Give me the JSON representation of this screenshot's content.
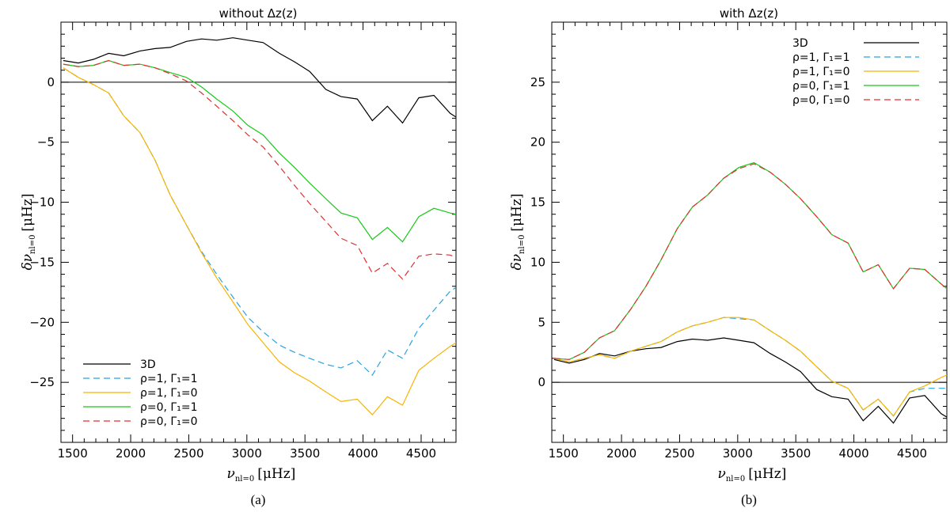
{
  "figure_captions": [
    "(a)",
    "(b)"
  ],
  "chart_data": [
    {
      "type": "line",
      "title": "without Δz(z)",
      "xlabel": "ν",
      "xlabel_sub": "nl=0",
      "xlabel_unit": "[μHz]",
      "ylabel": "δν",
      "ylabel_sub": "nl=0",
      "ylabel_unit": "[μHz]",
      "xlim": [
        1400,
        4800
      ],
      "ylim": [
        -30,
        5
      ],
      "xticks": [
        1500,
        2000,
        2500,
        3000,
        3500,
        4000,
        4500
      ],
      "yticks": [
        -25,
        -20,
        -15,
        -10,
        -5,
        0
      ],
      "xtick_labels": [
        "1500",
        "2000",
        "2500",
        "3000",
        "3500",
        "4000",
        "4500"
      ],
      "ytick_labels": [
        "−25",
        "−20",
        "−15",
        "−10",
        "−5",
        "0"
      ],
      "hline": 0,
      "legend_position": "bottom-left",
      "x": [
        1420,
        1550,
        1680,
        1810,
        1940,
        2080,
        2210,
        2340,
        2480,
        2610,
        2740,
        2880,
        3010,
        3140,
        3280,
        3410,
        3540,
        3680,
        3810,
        3950,
        4080,
        4210,
        4340,
        4480,
        4610,
        4750,
        4800
      ],
      "series": [
        {
          "name": "3D",
          "color": "#000000",
          "dash": "solid",
          "values": [
            1.8,
            1.6,
            1.9,
            2.4,
            2.2,
            2.6,
            2.8,
            2.9,
            3.4,
            3.6,
            3.5,
            3.7,
            3.5,
            3.3,
            2.4,
            1.7,
            0.9,
            -0.6,
            -1.2,
            -1.4,
            -3.2,
            -2.0,
            -3.4,
            -1.3,
            -1.1,
            -2.6,
            -2.9
          ]
        },
        {
          "name": "ρ=1, Γ₁=1",
          "color": "#2aa2e2",
          "dash": "dashed",
          "values": [
            1.2,
            0.4,
            -0.2,
            -0.9,
            -2.8,
            -4.2,
            -6.5,
            -9.4,
            -11.9,
            -14.1,
            -16.0,
            -17.9,
            -19.6,
            -20.8,
            -21.9,
            -22.5,
            -23.0,
            -23.5,
            -23.8,
            -23.2,
            -24.4,
            -22.3,
            -23.0,
            -20.5,
            -19.0,
            -17.4,
            -17.1
          ]
        },
        {
          "name": "ρ=1, Γ₁=0",
          "color": "#f7b500",
          "dash": "solid",
          "values": [
            1.2,
            0.4,
            -0.2,
            -0.9,
            -2.8,
            -4.2,
            -6.5,
            -9.4,
            -11.9,
            -14.2,
            -16.3,
            -18.3,
            -20.2,
            -21.7,
            -23.3,
            -24.2,
            -24.9,
            -25.8,
            -26.6,
            -26.4,
            -27.7,
            -26.2,
            -26.9,
            -24.0,
            -23.0,
            -22.0,
            -21.7
          ]
        },
        {
          "name": "ρ=0, Γ₁=1",
          "color": "#18c818",
          "dash": "solid",
          "values": [
            1.5,
            1.3,
            1.4,
            1.8,
            1.4,
            1.5,
            1.2,
            0.8,
            0.4,
            -0.4,
            -1.4,
            -2.4,
            -3.6,
            -4.4,
            -5.9,
            -7.1,
            -8.4,
            -9.7,
            -10.9,
            -11.3,
            -13.1,
            -12.1,
            -13.3,
            -11.2,
            -10.5,
            -10.9,
            -11.0
          ]
        },
        {
          "name": "ρ=0, Γ₁=0",
          "color": "#e03030",
          "dash": "dashed",
          "values": [
            1.5,
            1.3,
            1.4,
            1.8,
            1.4,
            1.5,
            1.2,
            0.7,
            0.1,
            -0.9,
            -2.0,
            -3.2,
            -4.4,
            -5.4,
            -7.0,
            -8.6,
            -10.1,
            -11.6,
            -13.0,
            -13.6,
            -15.9,
            -15.1,
            -16.4,
            -14.5,
            -14.3,
            -14.4,
            -14.6
          ]
        }
      ]
    },
    {
      "type": "line",
      "title": "with Δz(z)",
      "xlabel": "ν",
      "xlabel_sub": "nl=0",
      "xlabel_unit": "[μHz]",
      "ylabel": "δν",
      "ylabel_sub": "nl=0",
      "ylabel_unit": "[μHz]",
      "xlim": [
        1400,
        4800
      ],
      "ylim": [
        -5,
        30
      ],
      "xticks": [
        1500,
        2000,
        2500,
        3000,
        3500,
        4000,
        4500
      ],
      "yticks": [
        0,
        5,
        10,
        15,
        20,
        25
      ],
      "xtick_labels": [
        "1500",
        "2000",
        "2500",
        "3000",
        "3500",
        "4000",
        "4500"
      ],
      "ytick_labels": [
        "0",
        "5",
        "10",
        "15",
        "20",
        "25"
      ],
      "hline": 0,
      "legend_position": "top-right",
      "x": [
        1420,
        1550,
        1680,
        1810,
        1940,
        2080,
        2210,
        2340,
        2480,
        2610,
        2740,
        2880,
        3010,
        3140,
        3280,
        3410,
        3540,
        3680,
        3810,
        3950,
        4080,
        4210,
        4340,
        4480,
        4610,
        4750,
        4800
      ],
      "series": [
        {
          "name": "3D",
          "color": "#000000",
          "dash": "solid",
          "values": [
            1.9,
            1.6,
            1.9,
            2.4,
            2.2,
            2.6,
            2.8,
            2.9,
            3.4,
            3.6,
            3.5,
            3.7,
            3.5,
            3.3,
            2.4,
            1.7,
            0.9,
            -0.6,
            -1.2,
            -1.4,
            -3.2,
            -2.0,
            -3.4,
            -1.3,
            -1.1,
            -2.6,
            -2.9
          ]
        },
        {
          "name": "ρ=1, Γ₁=1",
          "color": "#2aa2e2",
          "dash": "dashed",
          "values": [
            2.0,
            1.7,
            2.0,
            2.3,
            2.0,
            2.6,
            3.0,
            3.4,
            4.2,
            4.7,
            5.0,
            5.4,
            5.3,
            5.2,
            4.3,
            3.5,
            2.6,
            1.3,
            0.1,
            -0.5,
            -2.3,
            -1.4,
            -2.8,
            -0.8,
            -0.5,
            -0.5,
            -0.5
          ]
        },
        {
          "name": "ρ=1, Γ₁=0",
          "color": "#f7b500",
          "dash": "solid",
          "values": [
            2.0,
            1.7,
            2.0,
            2.3,
            2.0,
            2.6,
            3.0,
            3.4,
            4.2,
            4.7,
            5.0,
            5.4,
            5.4,
            5.2,
            4.3,
            3.5,
            2.6,
            1.3,
            0.1,
            -0.5,
            -2.3,
            -1.4,
            -2.8,
            -0.8,
            -0.3,
            0.4,
            0.6
          ]
        },
        {
          "name": "ρ=0, Γ₁=1",
          "color": "#18c818",
          "dash": "solid",
          "values": [
            2.0,
            1.9,
            2.5,
            3.7,
            4.3,
            6.1,
            8.0,
            10.2,
            12.8,
            14.6,
            15.6,
            17.0,
            17.9,
            18.3,
            17.5,
            16.5,
            15.3,
            13.8,
            12.3,
            11.6,
            9.2,
            9.8,
            7.8,
            9.5,
            9.4,
            8.2,
            7.8
          ]
        },
        {
          "name": "ρ=0, Γ₁=0",
          "color": "#e03030",
          "dash": "dashed",
          "values": [
            2.0,
            1.9,
            2.5,
            3.7,
            4.3,
            6.1,
            8.0,
            10.2,
            12.8,
            14.6,
            15.6,
            17.0,
            17.8,
            18.2,
            17.5,
            16.5,
            15.3,
            13.8,
            12.3,
            11.6,
            9.2,
            9.8,
            7.8,
            9.5,
            9.4,
            8.2,
            7.8
          ]
        }
      ]
    }
  ]
}
